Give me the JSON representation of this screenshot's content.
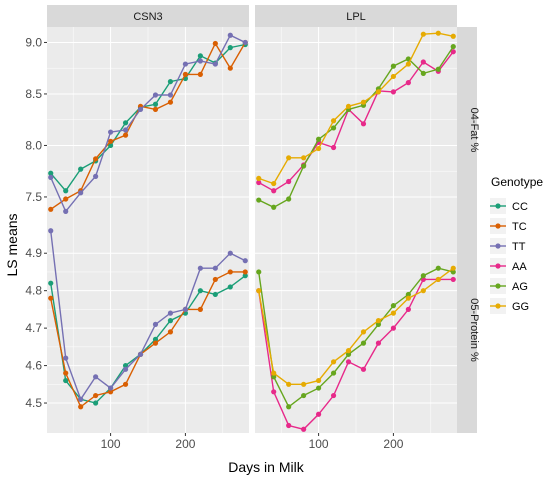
{
  "chart_data": {
    "type": "line",
    "xlabel": "Days in Milk",
    "ylabel": "LS means",
    "columns": [
      "CSN3",
      "LPL"
    ],
    "rows": [
      "04-Fat %",
      "05-Protein %"
    ],
    "x_ticks": [
      100,
      200
    ],
    "xlim": [
      15,
      285
    ],
    "x": [
      20,
      40,
      60,
      80,
      100,
      120,
      140,
      160,
      180,
      200,
      220,
      240,
      260,
      280
    ],
    "legend_title": "Genotype",
    "legend_position": "right",
    "grid": true,
    "legend": [
      {
        "name": "CC",
        "color": "#1b9e77"
      },
      {
        "name": "TC",
        "color": "#d95f02"
      },
      {
        "name": "TT",
        "color": "#7570b3"
      },
      {
        "name": "AA",
        "color": "#e7298a"
      },
      {
        "name": "AG",
        "color": "#66a61e"
      },
      {
        "name": "GG",
        "color": "#e6ab02"
      }
    ],
    "panels": [
      {
        "column": "CSN3",
        "row": "04-Fat %",
        "ylim": [
          7.15,
          9.15
        ],
        "y_ticks": [
          7.5,
          8.0,
          8.5,
          9.0
        ],
        "series": [
          {
            "name": "CC",
            "color": "#1b9e77",
            "values": [
              7.73,
              7.56,
              7.77,
              7.85,
              8.0,
              8.22,
              8.37,
              8.4,
              8.62,
              8.65,
              8.87,
              8.8,
              8.95,
              8.98
            ]
          },
          {
            "name": "TC",
            "color": "#d95f02",
            "values": [
              7.38,
              7.48,
              7.56,
              7.87,
              8.04,
              8.1,
              8.38,
              8.35,
              8.42,
              8.69,
              8.69,
              8.99,
              8.75,
              9.0
            ]
          },
          {
            "name": "TT",
            "color": "#7570b3",
            "values": [
              7.69,
              7.36,
              7.54,
              7.7,
              8.13,
              8.15,
              8.35,
              8.49,
              8.49,
              8.79,
              8.82,
              8.79,
              9.07,
              9.0
            ]
          }
        ]
      },
      {
        "column": "LPL",
        "row": "04-Fat %",
        "ylim": [
          7.15,
          9.15
        ],
        "y_ticks": [
          7.5,
          8.0,
          8.5,
          9.0
        ],
        "series": [
          {
            "name": "AA",
            "color": "#e7298a",
            "values": [
              7.64,
              7.56,
              7.65,
              7.81,
              8.03,
              7.98,
              8.35,
              8.21,
              8.53,
              8.52,
              8.61,
              8.81,
              8.72,
              8.91
            ]
          },
          {
            "name": "AG",
            "color": "#66a61e",
            "values": [
              7.47,
              7.4,
              7.48,
              7.8,
              8.06,
              8.17,
              8.35,
              8.39,
              8.55,
              8.77,
              8.84,
              8.7,
              8.74,
              8.96
            ]
          },
          {
            "name": "GG",
            "color": "#e6ab02",
            "values": [
              7.68,
              7.63,
              7.88,
              7.88,
              7.97,
              8.24,
              8.38,
              8.42,
              8.52,
              8.67,
              8.79,
              9.08,
              9.09,
              9.06
            ]
          }
        ]
      },
      {
        "column": "CSN3",
        "row": "05-Protein %",
        "ylim": [
          4.42,
          4.97
        ],
        "y_ticks": [
          4.5,
          4.6,
          4.7,
          4.8,
          4.9
        ],
        "series": [
          {
            "name": "CC",
            "color": "#1b9e77",
            "values": [
              4.82,
              4.56,
              4.51,
              4.5,
              4.54,
              4.6,
              4.63,
              4.67,
              4.72,
              4.74,
              4.8,
              4.79,
              4.81,
              4.84
            ]
          },
          {
            "name": "TC",
            "color": "#d95f02",
            "values": [
              4.78,
              4.58,
              4.49,
              4.52,
              4.53,
              4.55,
              4.63,
              4.66,
              4.69,
              4.75,
              4.75,
              4.83,
              4.85,
              4.85
            ]
          },
          {
            "name": "TT",
            "color": "#7570b3",
            "values": [
              4.96,
              4.62,
              4.51,
              4.57,
              4.54,
              4.59,
              4.63,
              4.71,
              4.74,
              4.75,
              4.86,
              4.86,
              4.9,
              4.88
            ]
          }
        ]
      },
      {
        "column": "LPL",
        "row": "05-Protein %",
        "ylim": [
          4.42,
          4.97
        ],
        "y_ticks": [
          4.5,
          4.6,
          4.7,
          4.8,
          4.9
        ],
        "series": [
          {
            "name": "AA",
            "color": "#e7298a",
            "values": [
              4.8,
              4.53,
              4.44,
              4.43,
              4.47,
              4.52,
              4.61,
              4.59,
              4.66,
              4.7,
              4.75,
              4.83,
              4.83,
              4.83
            ]
          },
          {
            "name": "AG",
            "color": "#66a61e",
            "values": [
              4.85,
              4.57,
              4.49,
              4.52,
              4.54,
              4.58,
              4.63,
              4.66,
              4.71,
              4.76,
              4.79,
              4.84,
              4.86,
              4.85
            ]
          },
          {
            "name": "GG",
            "color": "#e6ab02",
            "values": [
              4.8,
              4.58,
              4.55,
              4.55,
              4.56,
              4.61,
              4.64,
              4.69,
              4.72,
              4.74,
              4.78,
              4.8,
              4.83,
              4.86
            ]
          }
        ]
      }
    ]
  }
}
